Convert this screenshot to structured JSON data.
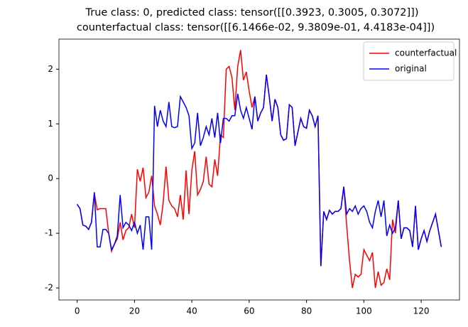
{
  "chart_data": {
    "type": "line",
    "title": "True class: 0, predicted class: tensor([[0.3923, 0.3005, 0.3072]])",
    "subtitle": "counterfactual class: tensor([[6.1466e-02, 9.3809e-01, 4.4183e-04]])",
    "x": [
      0,
      1,
      2,
      3,
      4,
      5,
      6,
      7,
      8,
      9,
      10,
      11,
      12,
      13,
      14,
      15,
      16,
      17,
      18,
      19,
      20,
      21,
      22,
      23,
      24,
      25,
      26,
      27,
      28,
      29,
      30,
      31,
      32,
      33,
      34,
      35,
      36,
      37,
      38,
      39,
      40,
      41,
      42,
      43,
      44,
      45,
      46,
      47,
      48,
      49,
      50,
      51,
      52,
      53,
      54,
      55,
      56,
      57,
      58,
      59,
      60,
      61,
      62,
      63,
      64,
      65,
      66,
      67,
      68,
      69,
      70,
      71,
      72,
      73,
      74,
      75,
      76,
      77,
      78,
      79,
      80,
      81,
      82,
      83,
      84,
      85,
      86,
      87,
      88,
      89,
      90,
      91,
      92,
      93,
      94,
      95,
      96,
      97,
      98,
      99,
      100,
      101,
      102,
      103,
      104,
      105,
      106,
      107,
      108,
      109,
      110,
      111,
      112,
      113,
      114,
      115,
      116,
      117,
      118,
      119,
      120,
      121,
      122,
      123,
      124,
      125,
      126,
      127
    ],
    "series": [
      {
        "name": "counterfactual",
        "color": "#ff0000",
        "values": [
          -0.47,
          -0.55,
          -0.85,
          -0.87,
          -0.93,
          -0.8,
          -0.27,
          -0.57,
          -0.55,
          -0.55,
          -0.55,
          -1.0,
          -1.33,
          -1.2,
          -1.1,
          -0.8,
          -1.12,
          -0.95,
          -0.9,
          -0.65,
          -0.9,
          0.17,
          -0.05,
          0.2,
          -0.35,
          -0.25,
          0.05,
          -0.5,
          -0.65,
          -0.85,
          -0.45,
          0.22,
          -0.4,
          -0.5,
          -0.55,
          -0.7,
          -0.3,
          -0.75,
          0.15,
          -0.65,
          0.15,
          0.5,
          -0.3,
          -0.2,
          -0.05,
          0.4,
          -0.1,
          -0.15,
          0.35,
          0.05,
          0.8,
          0.75,
          2.0,
          2.05,
          1.85,
          1.25,
          2.05,
          2.35,
          1.8,
          1.95,
          1.6,
          1.3,
          1.5,
          1.05,
          1.2,
          1.3,
          1.9,
          1.5,
          1.05,
          1.45,
          1.3,
          0.8,
          0.7,
          0.73,
          1.35,
          1.3,
          0.6,
          0.85,
          1.1,
          0.95,
          0.92,
          1.25,
          1.15,
          0.95,
          1.15,
          -1.6,
          -0.6,
          -0.75,
          -0.58,
          -0.65,
          -0.6,
          -0.6,
          -0.55,
          -0.15,
          -0.85,
          -1.5,
          -2.0,
          -1.75,
          -1.8,
          -1.75,
          -1.3,
          -1.4,
          -1.5,
          -1.35,
          -2.0,
          -1.7,
          -1.95,
          -1.9,
          -1.65,
          -1.85,
          -0.75,
          -1.0,
          -0.4,
          -1.1,
          -0.9,
          -0.9,
          -0.95,
          -1.25,
          -0.5,
          -1.3,
          -1.1,
          -0.95,
          -1.15,
          -0.95,
          -0.8,
          -0.65,
          -0.95,
          -1.25
        ]
      },
      {
        "name": "original",
        "color": "#0000ff",
        "values": [
          -0.47,
          -0.55,
          -0.85,
          -0.87,
          -0.93,
          -0.8,
          -0.25,
          -1.25,
          -1.25,
          -0.93,
          -0.93,
          -1.0,
          -1.3,
          -1.2,
          -1.05,
          -0.3,
          -0.9,
          -0.8,
          -0.85,
          -0.95,
          -0.8,
          -1.0,
          -0.85,
          -1.3,
          -0.7,
          -0.7,
          -1.3,
          1.33,
          0.95,
          1.25,
          1.05,
          0.95,
          1.4,
          0.95,
          0.93,
          0.95,
          1.5,
          1.4,
          1.3,
          1.15,
          0.55,
          0.65,
          1.2,
          0.6,
          0.75,
          0.95,
          0.8,
          1.1,
          0.75,
          1.2,
          0.65,
          1.1,
          1.1,
          1.05,
          1.15,
          1.15,
          1.55,
          1.25,
          1.1,
          1.3,
          1.1,
          0.9,
          1.5,
          1.05,
          1.2,
          1.3,
          1.9,
          1.5,
          1.05,
          1.45,
          1.3,
          0.8,
          0.7,
          0.73,
          1.35,
          1.3,
          0.6,
          0.85,
          1.1,
          0.95,
          0.92,
          1.25,
          1.15,
          0.95,
          1.15,
          -1.6,
          -0.6,
          -0.75,
          -0.58,
          -0.65,
          -0.6,
          -0.6,
          -0.55,
          -0.15,
          -0.65,
          -0.55,
          -0.6,
          -0.5,
          -0.65,
          -0.55,
          -0.5,
          -0.6,
          -0.8,
          -0.9,
          -0.6,
          -0.4,
          -0.7,
          -0.4,
          -1.05,
          -0.85,
          -1.0,
          -0.9,
          -0.4,
          -1.1,
          -0.9,
          -0.9,
          -0.95,
          -1.25,
          -0.5,
          -1.3,
          -1.1,
          -0.95,
          -1.15,
          -0.95,
          -0.8,
          -0.65,
          -0.95,
          -1.25
        ]
      }
    ],
    "xlim": [
      -6.35,
      133.35
    ],
    "xticks": [
      0,
      20,
      40,
      60,
      80,
      100,
      120
    ],
    "ylim": [
      -2.22,
      2.55
    ],
    "yticks": [
      -2,
      -1,
      0,
      1,
      2
    ],
    "legend": "upper right"
  }
}
